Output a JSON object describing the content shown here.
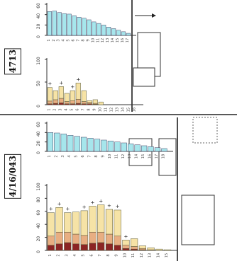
{
  "panels": {
    "top_label": "4713",
    "bottom_label": "4/16/043"
  },
  "colors": {
    "teal_bar": "#a6e6ec",
    "cream_segment": "#f6e3a6",
    "peach_segment": "#e8ae82",
    "maroon_segment": "#8c2424",
    "axis": "#333333"
  },
  "chart_data": [
    {
      "type": "bar",
      "title": "",
      "xlabel": "",
      "ylabel": "",
      "orientation": "rotated-90",
      "ylim": [
        0,
        60
      ],
      "yticks": [
        "0",
        "20",
        "40",
        "60"
      ],
      "categories": [
        "1",
        "2",
        "3",
        "4",
        "5",
        "6",
        "7",
        "8",
        "9",
        "10",
        "11",
        "12",
        "13",
        "14",
        "15",
        "16",
        "17"
      ],
      "values": [
        46,
        47,
        44,
        42,
        41,
        38,
        35,
        33,
        30,
        26,
        23,
        20,
        16,
        13,
        10,
        7,
        4
      ],
      "grid": false,
      "legend": "none"
    },
    {
      "type": "bar",
      "stacked": true,
      "title": "",
      "xlabel": "",
      "ylabel": "",
      "orientation": "rotated-90",
      "ylim": [
        0,
        100
      ],
      "yticks": [
        "0",
        "50",
        "100"
      ],
      "categories": [
        "1",
        "2",
        "3",
        "4",
        "5",
        "6",
        "7",
        "8",
        "9",
        "10",
        "11",
        "12",
        "13",
        "14",
        "15",
        "16"
      ],
      "series": [
        {
          "values": [
            2,
            3,
            4,
            2,
            2,
            3,
            2,
            2,
            1,
            0,
            0,
            0,
            0,
            0,
            0,
            0
          ]
        },
        {
          "values": [
            6,
            8,
            10,
            5,
            7,
            9,
            5,
            3,
            2,
            0,
            0,
            0,
            0,
            0,
            0,
            0
          ]
        },
        {
          "values": [
            30,
            20,
            26,
            18,
            22,
            36,
            24,
            4,
            8,
            6,
            0,
            0,
            0,
            0,
            0,
            0
          ]
        }
      ],
      "markers": [
        "+",
        "",
        "+",
        "",
        "+",
        "+",
        "",
        "",
        "",
        "",
        "",
        "",
        "",
        "",
        "",
        ""
      ],
      "grid": false,
      "legend": "right"
    },
    {
      "type": "bar",
      "title": "",
      "xlabel": "",
      "ylabel": "",
      "orientation": "rotated-90",
      "ylim": [
        0,
        60
      ],
      "yticks": [
        "0",
        "20",
        "40",
        "60"
      ],
      "categories": [
        "1",
        "2",
        "3",
        "4",
        "5",
        "6",
        "7",
        "8",
        "9",
        "10",
        "11",
        "12",
        "13",
        "14",
        "15",
        "16",
        "17",
        "18"
      ],
      "values": [
        40,
        39,
        37,
        34,
        32,
        30,
        28,
        26,
        24,
        22,
        20,
        18,
        16,
        14,
        12,
        10,
        8,
        6
      ],
      "grid": false,
      "legend": "none"
    },
    {
      "type": "bar",
      "stacked": true,
      "title": "",
      "xlabel": "",
      "ylabel": "",
      "orientation": "rotated-90",
      "ylim": [
        0,
        100
      ],
      "yticks": [
        "0",
        "20",
        "40",
        "60",
        "80",
        "100"
      ],
      "categories": [
        "1",
        "2",
        "3",
        "4",
        "5",
        "6",
        "7",
        "8",
        "9",
        "10",
        "11",
        "12",
        "13",
        "14",
        "15"
      ],
      "series": [
        {
          "values": [
            8,
            10,
            12,
            10,
            9,
            11,
            12,
            10,
            8,
            3,
            2,
            1,
            0,
            0,
            0
          ]
        },
        {
          "values": [
            14,
            18,
            16,
            15,
            14,
            17,
            16,
            15,
            14,
            5,
            4,
            2,
            1,
            0,
            0
          ]
        },
        {
          "values": [
            36,
            38,
            30,
            34,
            38,
            40,
            42,
            38,
            40,
            8,
            12,
            4,
            3,
            2,
            1
          ]
        }
      ],
      "markers": [
        "+",
        "+",
        "+",
        "",
        "+",
        "+",
        "+",
        "+",
        "+",
        "+",
        "",
        "",
        "",
        "",
        ""
      ],
      "grid": false,
      "legend": "right"
    }
  ]
}
